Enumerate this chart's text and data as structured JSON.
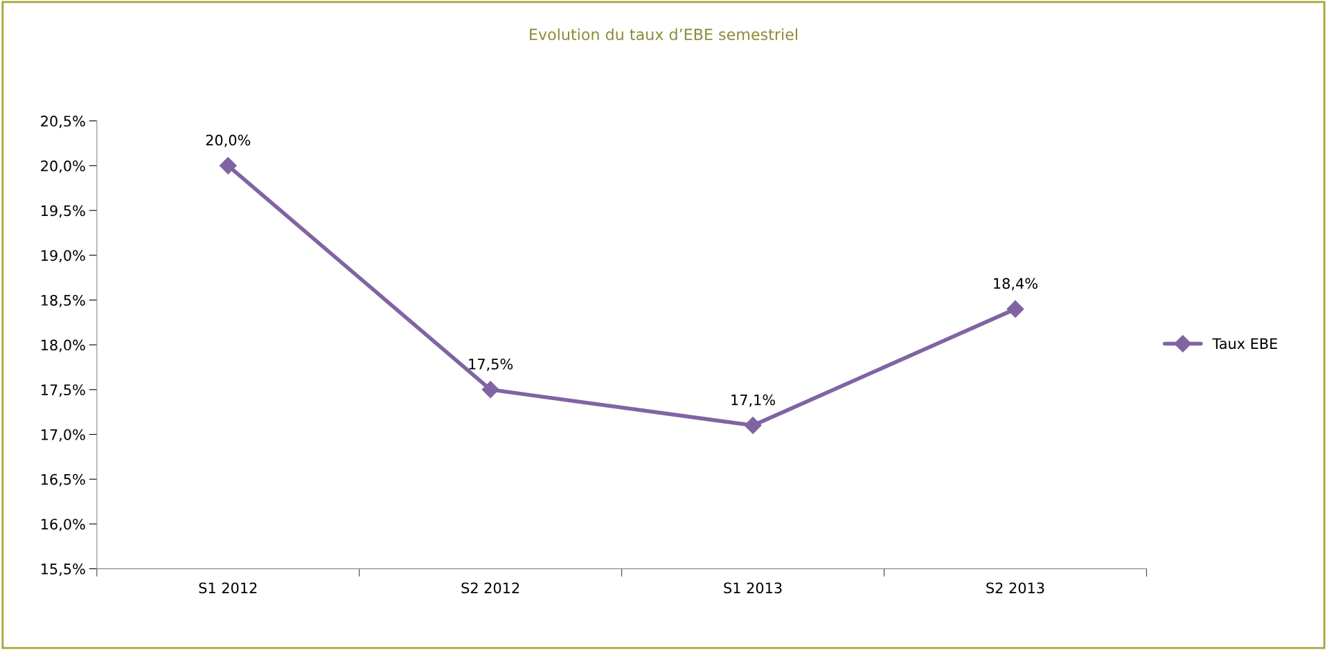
{
  "chart_data": {
    "type": "line",
    "title": "Evolution du taux d’EBE semestriel",
    "categories": [
      "S1 2012",
      "S2 2012",
      "S1 2013",
      "S2 2013"
    ],
    "series": [
      {
        "name": "Taux EBE",
        "color": "#8064a2",
        "values": [
          20.0,
          17.5,
          17.1,
          18.4
        ],
        "value_labels": [
          "20,0%",
          "17,5%",
          "17,1%",
          "18,4%"
        ]
      }
    ],
    "ylim": [
      15.5,
      20.5
    ],
    "yticks": [
      {
        "value": 15.5,
        "label": "15,5%"
      },
      {
        "value": 16.0,
        "label": "16,0%"
      },
      {
        "value": 16.5,
        "label": "16,5%"
      },
      {
        "value": 17.0,
        "label": "17,0%"
      },
      {
        "value": 17.5,
        "label": "17,5%"
      },
      {
        "value": 18.0,
        "label": "18,0%"
      },
      {
        "value": 18.5,
        "label": "18,5%"
      },
      {
        "value": 19.0,
        "label": "19,0%"
      },
      {
        "value": 19.5,
        "label": "19,5%"
      },
      {
        "value": 20.0,
        "label": "20,0%"
      },
      {
        "value": 20.5,
        "label": "20,5%"
      }
    ],
    "marker": "diamond",
    "line_style": "solid",
    "grid": false,
    "legend": "right"
  }
}
